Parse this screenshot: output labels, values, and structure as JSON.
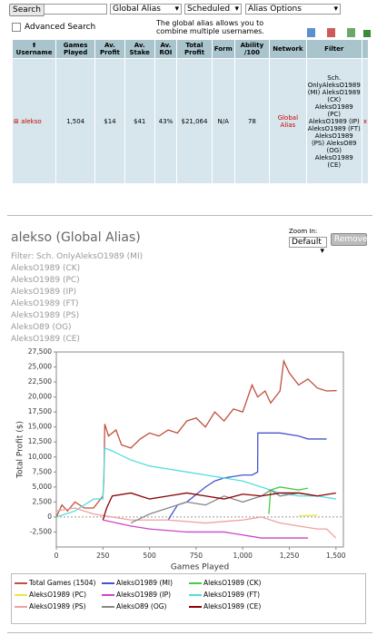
{
  "toolbar": {
    "search_button": "Search",
    "alias_select": "Global Alias",
    "schedule_select": "Scheduled",
    "options_select": "Alias Options",
    "advanced_search": "Advanced Search",
    "hint": "The global alias allows you to combine multiple usernames."
  },
  "table": {
    "headers": [
      "Username",
      "Games Played",
      "Av. Profit",
      "Av. Stake",
      "Av. ROI",
      "Total Profit",
      "Form",
      "Ability /100",
      "Network",
      "Filter"
    ],
    "row": [
      "alekso",
      "1,504",
      "$14",
      "$41",
      "43%",
      "$21,064",
      "N/A",
      "78",
      "Global Alias",
      [
        "Sch. OnlyAleksO1989 (MI)",
        "AleksO1989 (CK)",
        "AleksO1989 (PC)",
        "AleksO1989 (IP)",
        "AleksO1989 (FT)",
        "AleksO1989 (PS)",
        "AleksO89 (OG)",
        "AleksO1989 (CE)"
      ],
      "x"
    ]
  },
  "profile": {
    "title": "alekso (Global Alias)",
    "zoom_label": "Zoom In:",
    "zoom_select": "Default",
    "remove_button": "Remove",
    "filters": [
      "Filter: Sch. OnlyAleksO1989 (MI)",
      "AleksO1989 (CK)",
      "AleksO1989 (PC)",
      "AleksO1989 (IP)",
      "AleksO1989 (FT)",
      "AleksO1989 (PS)",
      "AleksO89 (OG)",
      "AleksO1989 (CE)"
    ]
  },
  "chart_data": {
    "type": "line",
    "x_label": "Games Played",
    "y_label": "Total Profit ($)",
    "xlim": [
      0,
      1540
    ],
    "ylim": [
      -5000,
      27500
    ],
    "xticks": [
      0,
      250,
      500,
      750,
      {
        "value": 1000,
        "label": "1,000"
      },
      {
        "value": 1250,
        "label": "1,250"
      },
      {
        "value": 1500,
        "label": "1,500"
      }
    ],
    "yticks": [
      {
        "value": -2500,
        "label": "-2,500"
      },
      0,
      {
        "value": 2500,
        "label": "2,500"
      },
      {
        "value": 5000,
        "label": "5,000"
      },
      {
        "value": 7500,
        "label": "7,500"
      },
      {
        "value": 10000,
        "label": "10,000"
      },
      {
        "value": 12500,
        "label": "12,500"
      },
      {
        "value": 15000,
        "label": "15,000"
      },
      {
        "value": 17500,
        "label": "17,500"
      },
      {
        "value": 20000,
        "label": "20,000"
      },
      {
        "value": 22500,
        "label": "22,500"
      },
      {
        "value": 25000,
        "label": "25,000"
      },
      {
        "value": 27500,
        "label": "27,500"
      }
    ],
    "series": [
      {
        "name": "Total Games (1504)",
        "color": "#c0503c",
        "x": [
          0,
          30,
          60,
          100,
          150,
          200,
          250,
          255,
          260,
          280,
          320,
          350,
          400,
          450,
          500,
          550,
          600,
          650,
          700,
          750,
          800,
          850,
          900,
          950,
          1000,
          1050,
          1080,
          1120,
          1150,
          1200,
          1220,
          1250,
          1300,
          1350,
          1400,
          1450,
          1504
        ],
        "values": [
          0,
          2000,
          1000,
          2500,
          1500,
          1500,
          3500,
          6000,
          15500,
          13500,
          14500,
          12000,
          11500,
          13000,
          14000,
          13500,
          14500,
          14000,
          16000,
          16500,
          15000,
          17500,
          16000,
          18000,
          17500,
          22000,
          20000,
          21000,
          19000,
          21000,
          26000,
          24000,
          22000,
          23000,
          21500,
          21000,
          21064
        ]
      },
      {
        "name": "AleksO1989 (MI)",
        "color": "#4455cc",
        "x": [
          600,
          650,
          700,
          800,
          850,
          900,
          1000,
          1050,
          1080,
          1081,
          1100,
          1200,
          1300,
          1350,
          1400,
          1450
        ],
        "values": [
          -500,
          2000,
          2500,
          5000,
          6000,
          6500,
          7000,
          7000,
          7500,
          14000,
          14000,
          14000,
          13500,
          13000,
          13000,
          13000
        ]
      },
      {
        "name": "AleksO1989 (CK)",
        "color": "#44cc44",
        "x": [
          1140,
          1150,
          1200,
          1300,
          1350
        ],
        "values": [
          500,
          4500,
          5000,
          4500,
          4800
        ]
      },
      {
        "name": "AleksO1989 (PC)",
        "color": "#e8e840",
        "x": [
          1300,
          1400
        ],
        "values": [
          200,
          300
        ]
      },
      {
        "name": "AleksO1989 (IP)",
        "color": "#cc44cc",
        "x": [
          250,
          400,
          500,
          700,
          900,
          1100,
          1250,
          1350
        ],
        "values": [
          -500,
          -1500,
          -2000,
          -2500,
          -2500,
          -3500,
          -3500,
          -3500
        ]
      },
      {
        "name": "AleksO1989 (FT)",
        "color": "#55dddd",
        "x": [
          0,
          100,
          200,
          250,
          260,
          300,
          400,
          500,
          600,
          700,
          800,
          900,
          1000,
          1100,
          1200,
          1300,
          1400,
          1500
        ],
        "values": [
          0,
          1000,
          3000,
          3000,
          11500,
          11000,
          9500,
          8500,
          8000,
          7500,
          7000,
          6500,
          6000,
          5000,
          4000,
          3500,
          3500,
          3000
        ]
      },
      {
        "name": "AleksO1989 (PS)",
        "color": "#f0a0a0",
        "x": [
          0,
          100,
          200,
          300,
          400,
          600,
          800,
          1000,
          1100,
          1200,
          1300,
          1400,
          1450,
          1500
        ],
        "values": [
          1000,
          1500,
          500,
          0,
          -500,
          -500,
          -1000,
          -500,
          0,
          -1000,
          -1500,
          -2000,
          -2000,
          -3500
        ]
      },
      {
        "name": "AleksO89 (OG)",
        "color": "#888888",
        "x": [
          400,
          500,
          600,
          700,
          800,
          900,
          1000,
          1100,
          1150,
          1200,
          1300,
          1400
        ],
        "values": [
          -1000,
          500,
          1500,
          2500,
          2000,
          3500,
          2500,
          3500,
          4500,
          3500,
          4000,
          3500
        ]
      },
      {
        "name": "AleksO1989 (CE)",
        "color": "#8b0000",
        "x": [
          250,
          270,
          300,
          400,
          500,
          600,
          700,
          800,
          900,
          1000,
          1100,
          1200,
          1300,
          1400,
          1500
        ],
        "values": [
          -500,
          1500,
          3500,
          4000,
          3000,
          3500,
          4000,
          3500,
          3000,
          3800,
          3500,
          4000,
          4000,
          3500,
          4000
        ]
      }
    ]
  }
}
